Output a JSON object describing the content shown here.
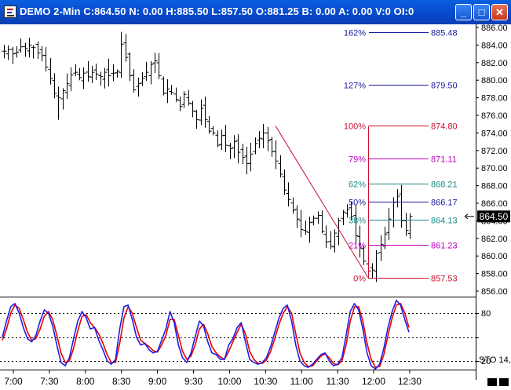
{
  "window": {
    "title": "DEMO 2-Min C:864.50 N: 0.00 H:885.50 L:857.50 O:881.25 B: 0.00 A: 0.00 V:0 OI:0",
    "minimize_glyph": "_",
    "maximize_glyph": "□",
    "close_glyph": "✕"
  },
  "colors": {
    "fib_blue": "#1a1aa0",
    "fib_red": "#c8102e",
    "fib_magenta": "#c000c0",
    "fib_teal": "#1a8a8a",
    "stoch_fast": "#1e1ee6",
    "stoch_slow": "#e60000",
    "price_bar": "#000000"
  },
  "current_price_label": "864.50",
  "chart_data": [
    {
      "type": "ohlc",
      "interval": "2-Min",
      "symbol": "DEMO",
      "ylim": [
        856,
        886
      ],
      "y_ticks": [
        "886.00",
        "884.00",
        "882.00",
        "880.00",
        "878.00",
        "876.00",
        "874.00",
        "872.00",
        "870.00",
        "868.00",
        "866.00",
        "864.00",
        "862.00",
        "860.00",
        "858.00",
        "856.00"
      ],
      "x_ticks": [
        "7:00",
        "7:30",
        "8:00",
        "8:30",
        "9:00",
        "9:30",
        "10:00",
        "10:30",
        "11:00",
        "11:30",
        "12:00",
        "12:30"
      ],
      "close_series": [
        883.3,
        883.5,
        883.0,
        883.2,
        883.8,
        883.6,
        884.0,
        883.7,
        883.1,
        882.8,
        881.5,
        880.2,
        878.5,
        878.0,
        878.8,
        879.6,
        880.6,
        880.9,
        880.3,
        880.8,
        880.4,
        880.9,
        880.7,
        880.4,
        880.9,
        880.5,
        880.8,
        881.0,
        884.1,
        882.6,
        880.5,
        878.9,
        879.6,
        880.2,
        880.9,
        881.8,
        882.2,
        880.5,
        878.5,
        879.0,
        878.6,
        877.8,
        877.0,
        878.4,
        877.4,
        876.5,
        875.5,
        876.8,
        875.5,
        874.2,
        874.0,
        872.6,
        873.7,
        872.6,
        872.2,
        873.0,
        871.8,
        871.2,
        870.5,
        871.6,
        872.8,
        873.4,
        874.0,
        873.1,
        871.9,
        870.8,
        869.3,
        867.5,
        866.4,
        865.2,
        864.2,
        863.0,
        862.8,
        863.8,
        864.3,
        864.6,
        862.8,
        861.6,
        861.1,
        862.6,
        864.0,
        865.0,
        865.3,
        864.5,
        862.3,
        860.9,
        859.4,
        858.3,
        858.4,
        860.3,
        861.3,
        862.5,
        864.2,
        866.1,
        866.8,
        864.0,
        862.9,
        864.5
      ],
      "fib_retracement": {
        "swing_high": 874.8,
        "swing_low": 857.53,
        "levels": [
          {
            "pct": "162%",
            "value": "885.48",
            "color": "#1a1aa0"
          },
          {
            "pct": "127%",
            "value": "879.50",
            "color": "#1a1aa0"
          },
          {
            "pct": "100%",
            "value": "874.80",
            "color": "#c8102e"
          },
          {
            "pct": "79%",
            "value": "871.11",
            "color": "#c000c0"
          },
          {
            "pct": "62%",
            "value": "868.21",
            "color": "#1a8a8a"
          },
          {
            "pct": "50%",
            "value": "866.17",
            "color": "#1a1aa0"
          },
          {
            "pct": "38%",
            "value": "864.13",
            "color": "#1a8a8a"
          },
          {
            "pct": "21%",
            "value": "861.23",
            "color": "#c000c0"
          },
          {
            "pct": "0%",
            "value": "857.53",
            "color": "#c8102e"
          }
        ]
      }
    },
    {
      "type": "line",
      "indicator_label": "STO 14,",
      "ylim": [
        0,
        100
      ],
      "y_ticks": [
        "80",
        "20"
      ],
      "reference_lines": [
        80,
        50,
        20
      ],
      "series": [
        {
          "values": [
            50,
            70,
            88,
            92,
            80,
            62,
            48,
            44,
            52,
            70,
            84,
            80,
            64,
            40,
            18,
            14,
            24,
            48,
            70,
            82,
            74,
            60,
            62,
            46,
            34,
            20,
            16,
            22,
            60,
            88,
            90,
            72,
            50,
            40,
            42,
            34,
            30,
            32,
            46,
            60,
            82,
            68,
            40,
            24,
            18,
            30,
            50,
            70,
            64,
            44,
            30,
            28,
            22,
            22,
            40,
            48,
            62,
            68,
            44,
            22,
            18,
            16,
            18,
            24,
            38,
            56,
            74,
            86,
            90,
            70,
            40,
            20,
            14,
            12,
            16,
            22,
            28,
            30,
            20,
            14,
            16,
            24,
            52,
            82,
            92,
            84,
            60,
            30,
            14,
            10,
            16,
            36,
            62,
            82,
            96,
            90,
            72,
            56
          ]
        },
        {
          "values": [
            46,
            60,
            80,
            90,
            86,
            72,
            56,
            46,
            48,
            60,
            76,
            82,
            72,
            52,
            30,
            18,
            20,
            36,
            58,
            76,
            78,
            68,
            62,
            54,
            42,
            28,
            18,
            18,
            42,
            74,
            88,
            80,
            62,
            46,
            42,
            38,
            33,
            31,
            40,
            52,
            72,
            72,
            52,
            32,
            22,
            26,
            40,
            60,
            66,
            54,
            38,
            30,
            25,
            22,
            32,
            44,
            56,
            66,
            54,
            32,
            22,
            17,
            17,
            21,
            32,
            48,
            66,
            80,
            88,
            80,
            54,
            30,
            18,
            13,
            14,
            20,
            26,
            29,
            24,
            17,
            15,
            20,
            40,
            70,
            88,
            88,
            70,
            42,
            22,
            12,
            13,
            28,
            52,
            74,
            90,
            92,
            80,
            62
          ]
        }
      ]
    }
  ]
}
